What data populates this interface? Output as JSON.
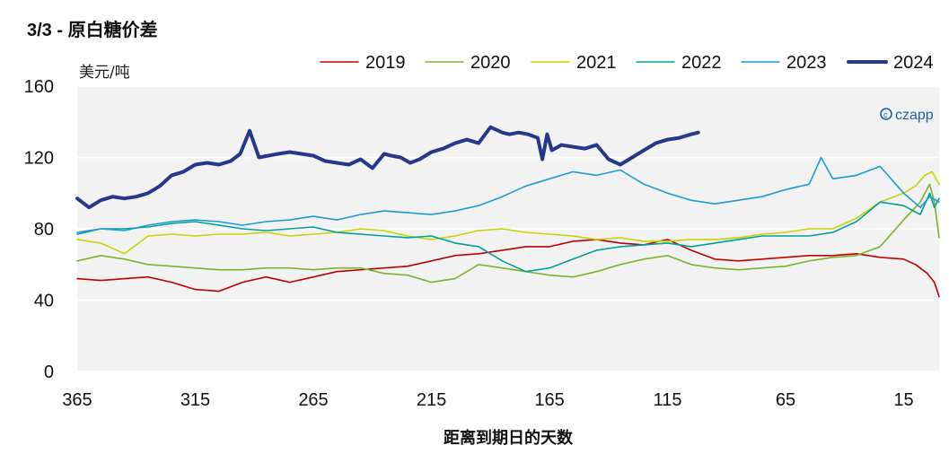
{
  "chart_data": {
    "type": "line",
    "title_prefix": "3/3 - ",
    "title": "原白糖价差",
    "ylabel": "美元/吨",
    "xlabel": "距离到期日的天数",
    "ylim": [
      0,
      160
    ],
    "yticks": [
      0,
      40,
      80,
      120,
      160
    ],
    "xlim": [
      365,
      0
    ],
    "xticks": [
      365,
      315,
      265,
      215,
      165,
      115,
      65,
      15
    ],
    "grid": true,
    "legend_position": "top-right",
    "watermark": "czapp",
    "series": [
      {
        "name": "2019",
        "color": "#c00000",
        "stroke": 1.6,
        "x": [
          365,
          355,
          345,
          335,
          325,
          315,
          305,
          295,
          285,
          275,
          265,
          255,
          245,
          235,
          225,
          215,
          205,
          195,
          185,
          175,
          165,
          155,
          145,
          135,
          125,
          115,
          105,
          95,
          85,
          75,
          65,
          55,
          45,
          35,
          25,
          15,
          10,
          5,
          2,
          0
        ],
        "values": [
          52,
          51,
          52,
          53,
          50,
          46,
          45,
          50,
          53,
          50,
          53,
          56,
          57,
          58,
          59,
          62,
          65,
          66,
          68,
          70,
          70,
          73,
          74,
          72,
          71,
          74,
          68,
          63,
          62,
          63,
          64,
          65,
          65,
          66,
          64,
          63,
          60,
          55,
          50,
          42
        ]
      },
      {
        "name": "2020",
        "color": "#7ab32e",
        "stroke": 1.6,
        "x": [
          365,
          355,
          345,
          335,
          325,
          315,
          305,
          295,
          285,
          275,
          265,
          255,
          245,
          235,
          225,
          215,
          205,
          195,
          185,
          175,
          165,
          155,
          145,
          135,
          125,
          115,
          105,
          95,
          85,
          75,
          65,
          55,
          45,
          35,
          25,
          15,
          8,
          4,
          2,
          0
        ],
        "values": [
          62,
          65,
          63,
          60,
          59,
          58,
          57,
          57,
          58,
          58,
          57,
          58,
          58,
          55,
          54,
          50,
          52,
          60,
          58,
          56,
          54,
          53,
          56,
          60,
          63,
          65,
          60,
          58,
          57,
          58,
          59,
          62,
          64,
          65,
          70,
          85,
          95,
          105,
          95,
          75
        ]
      },
      {
        "name": "2021",
        "color": "#c8d400",
        "stroke": 1.6,
        "x": [
          365,
          355,
          345,
          335,
          325,
          315,
          305,
          295,
          285,
          275,
          265,
          255,
          245,
          235,
          225,
          215,
          205,
          195,
          185,
          175,
          165,
          155,
          145,
          135,
          125,
          115,
          105,
          95,
          85,
          75,
          65,
          55,
          45,
          35,
          25,
          15,
          10,
          6,
          3,
          0
        ],
        "values": [
          74,
          72,
          66,
          76,
          77,
          76,
          77,
          77,
          78,
          76,
          77,
          78,
          80,
          79,
          76,
          74,
          76,
          79,
          80,
          78,
          77,
          76,
          74,
          75,
          73,
          73,
          74,
          74,
          75,
          77,
          78,
          80,
          80,
          86,
          95,
          100,
          104,
          110,
          112,
          105
        ]
      },
      {
        "name": "2022",
        "color": "#00a09a",
        "stroke": 1.6,
        "x": [
          365,
          355,
          345,
          335,
          325,
          315,
          305,
          295,
          285,
          275,
          265,
          255,
          245,
          235,
          225,
          215,
          205,
          195,
          185,
          175,
          165,
          155,
          145,
          135,
          125,
          115,
          105,
          95,
          85,
          75,
          65,
          55,
          45,
          35,
          25,
          15,
          8,
          4,
          2,
          0
        ],
        "values": [
          77,
          80,
          80,
          81,
          83,
          84,
          82,
          80,
          79,
          80,
          81,
          78,
          77,
          76,
          75,
          76,
          72,
          70,
          62,
          56,
          58,
          63,
          68,
          70,
          71,
          72,
          70,
          72,
          74,
          76,
          76,
          76,
          78,
          84,
          95,
          93,
          88,
          100,
          92,
          97
        ]
      },
      {
        "name": "2023",
        "color": "#1e9bd7",
        "stroke": 1.6,
        "x": [
          365,
          355,
          345,
          335,
          325,
          315,
          305,
          295,
          285,
          275,
          265,
          255,
          245,
          235,
          225,
          215,
          205,
          195,
          185,
          175,
          165,
          155,
          145,
          135,
          125,
          115,
          105,
          95,
          85,
          75,
          65,
          55,
          50,
          45,
          35,
          25,
          15,
          8,
          4,
          0
        ],
        "values": [
          78,
          80,
          79,
          82,
          84,
          85,
          84,
          82,
          84,
          85,
          87,
          85,
          88,
          90,
          89,
          88,
          90,
          93,
          98,
          104,
          108,
          112,
          110,
          113,
          105,
          100,
          96,
          94,
          96,
          98,
          102,
          105,
          120,
          108,
          110,
          115,
          100,
          92,
          98,
          95
        ]
      },
      {
        "name": "2024",
        "color": "#253889",
        "stroke": 4,
        "x": [
          365,
          360,
          355,
          350,
          345,
          340,
          335,
          330,
          325,
          320,
          315,
          310,
          305,
          300,
          296,
          292,
          288,
          284,
          280,
          275,
          270,
          265,
          260,
          255,
          250,
          245,
          240,
          235,
          232,
          228,
          224,
          220,
          215,
          210,
          205,
          200,
          195,
          190,
          185,
          182,
          178,
          174,
          170,
          168,
          166,
          164,
          160,
          155,
          150,
          145,
          140,
          135,
          130,
          125,
          120,
          115,
          110,
          105,
          102
        ],
        "values": [
          97,
          92,
          96,
          98,
          97,
          98,
          100,
          104,
          110,
          112,
          116,
          117,
          116,
          118,
          122,
          135,
          120,
          121,
          122,
          123,
          122,
          121,
          118,
          117,
          116,
          119,
          114,
          122,
          121,
          120,
          117,
          119,
          123,
          125,
          128,
          130,
          128,
          137,
          134,
          133,
          134,
          133,
          131,
          119,
          133,
          124,
          127,
          126,
          125,
          127,
          119,
          116,
          120,
          124,
          128,
          130,
          131,
          133,
          134
        ]
      }
    ]
  }
}
